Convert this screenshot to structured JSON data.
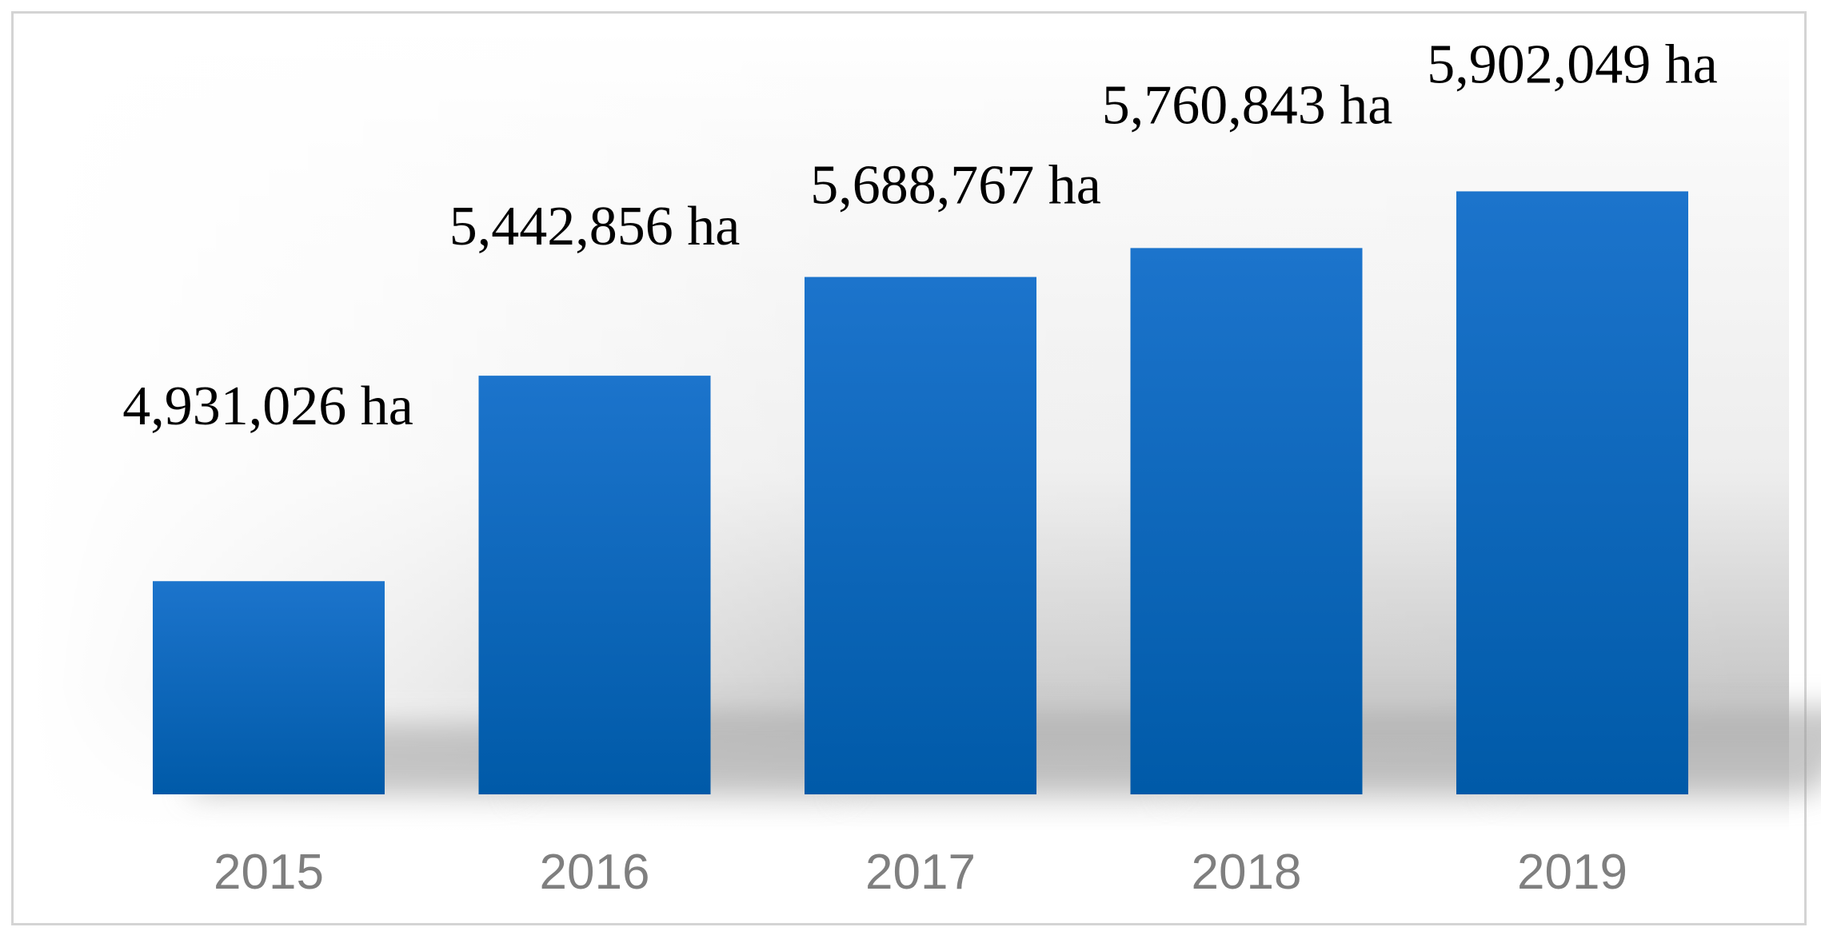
{
  "chart_data": {
    "type": "bar",
    "categories": [
      "2015",
      "2016",
      "2017",
      "2018",
      "2019"
    ],
    "values": [
      4931026,
      5442856,
      5688767,
      5760843,
      5902049
    ],
    "data_labels": [
      "4,931,026 ha",
      "5,442,856 ha",
      "5,688,767 ha",
      "5,760,843 ha",
      "5,902,049 ha"
    ],
    "unit": "ha",
    "title": "",
    "xlabel": "",
    "ylabel": "",
    "ylim": [
      4400000,
      6100000
    ],
    "grid": false,
    "legend": "none",
    "colors": {
      "bar_top": "#1c74cc",
      "bar_bottom": "#005aa8",
      "tick_text": "#7f7f7f",
      "label_text": "#000000",
      "frame_border": "#d4d4d4"
    }
  }
}
